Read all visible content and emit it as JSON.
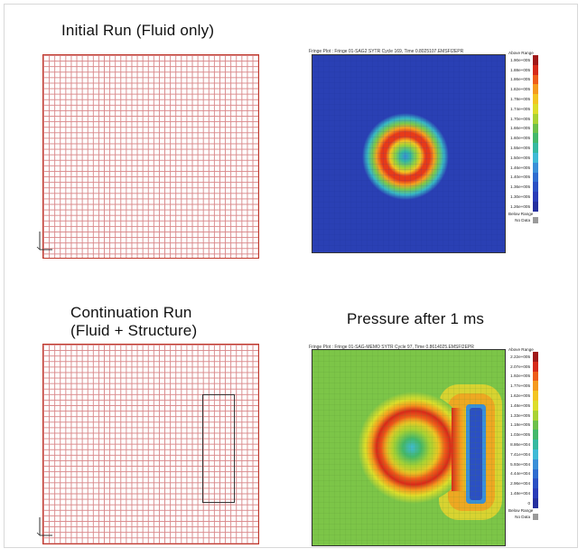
{
  "panels": {
    "initial_title": "Initial Run (Fluid only)",
    "continuation_title_line1": "Continuation Run",
    "continuation_title_line2": "(Fluid + Structure)",
    "pressure_title": "Pressure after 1 ms"
  },
  "plot_top": {
    "header": "Fringe Plot : Fringe 01-SAG2 SYTR Cycle 169, Time 0.8025107.EMSFI2EPR",
    "legend_top": "Above Range",
    "legend_values": [
      "1.90e+005",
      "1.88e+005",
      "1.86e+005",
      "1.82e+005",
      "1.78e+005",
      "1.74e+005",
      "1.70e+005",
      "1.66e+005",
      "1.60e+005",
      "1.55e+005",
      "1.50e+005",
      "1.46e+005",
      "1.40e+005",
      "1.36e+005",
      "1.30e+005",
      "1.26e+005"
    ],
    "legend_bottom": "Below Range",
    "no_data": "No Data",
    "colors": [
      "#a01818",
      "#d62a1a",
      "#ee5c1a",
      "#f59a1e",
      "#f3c522",
      "#dddd2a",
      "#a9d233",
      "#6cc04a",
      "#43b86a",
      "#35b9a0",
      "#3fbad6",
      "#3a8fd8",
      "#2f6cd0",
      "#2b50c4",
      "#2a3cb8",
      "#25309f"
    ]
  },
  "plot_bottom": {
    "header": "Fringe Plot : Fringe 01-SAG-MEMO SYTR Cycle 97, Time 0.8614025.EMSFI2EPR",
    "legend_top": "Above Range",
    "legend_values": [
      "2.22e+005",
      "2.07e+005",
      "1.92e+005",
      "1.77e+005",
      "1.62e+005",
      "1.48e+005",
      "1.33e+005",
      "1.18e+005",
      "1.03e+005",
      "8.86e+004",
      "7.41e+004",
      "5.93e+004",
      "4.44e+004",
      "2.96e+004",
      "1.48e+004",
      "0"
    ],
    "legend_bottom": "Below Range",
    "no_data": "No Data",
    "colors": [
      "#a01818",
      "#d62a1a",
      "#ee5c1a",
      "#f59a1e",
      "#f3c522",
      "#dddd2a",
      "#a9d233",
      "#6cc04a",
      "#43b86a",
      "#35b9a0",
      "#3fbad6",
      "#3a8fd8",
      "#2f6cd0",
      "#2b50c4",
      "#2a3cb8",
      "#25309f"
    ]
  }
}
